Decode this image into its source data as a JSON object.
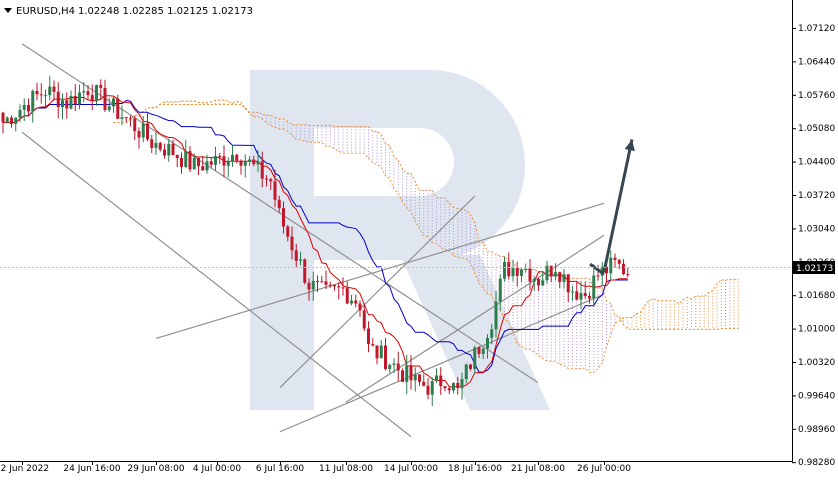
{
  "header": {
    "symbol_timeframe": "EURUSD,H4",
    "ohlc": "1.02248 1.02285 1.02125 1.02173"
  },
  "current_price_label": "1.02173",
  "colors": {
    "bull": "#2e7d4f",
    "bear": "#c0172a",
    "tenkan": "#e00000",
    "kijun": "#0000cc",
    "cloud": "#f0913a",
    "cloud_alt": "#b090d0",
    "trendline": "#909090",
    "arrow": "#37474f",
    "watermark": "#dfe6f0"
  },
  "chart_data": {
    "type": "candlestick",
    "symbol": "EURUSD",
    "timeframe": "H4",
    "y_ticks": [
      "1.07120",
      "1.06440",
      "1.05760",
      "1.05080",
      "1.04400",
      "1.03720",
      "1.03040",
      "1.02360",
      "1.01680",
      "1.01000",
      "1.00320",
      "0.99640",
      "0.98960",
      "0.98280"
    ],
    "x_ticks": [
      "22 Jun 2022",
      "24 Jun 16:00",
      "29 Jun 08:00",
      "4 Jul 00:00",
      "6 Jul 16:00",
      "11 Jul 08:00",
      "14 Jul 00:00",
      "18 Jul 16:00",
      "21 Jul 08:00",
      "26 Jul 00:00"
    ],
    "ylim": [
      0.9828,
      1.076
    ],
    "current_price": 1.02173,
    "close_path": [
      [
        0,
        1.052
      ],
      [
        5,
        1.0555
      ],
      [
        10,
        1.0585
      ],
      [
        15,
        1.056
      ],
      [
        20,
        1.059
      ],
      [
        25,
        1.0555
      ],
      [
        30,
        1.052
      ],
      [
        35,
        1.048
      ],
      [
        40,
        1.046
      ],
      [
        45,
        1.043
      ],
      [
        50,
        1.044
      ],
      [
        55,
        1.046
      ],
      [
        60,
        1.042
      ],
      [
        63,
        1.04
      ],
      [
        65,
        1.033
      ],
      [
        68,
        1.027
      ],
      [
        72,
        1.019
      ],
      [
        76,
        1.017
      ],
      [
        80,
        1.018
      ],
      [
        84,
        1.015
      ],
      [
        86,
        1.006
      ],
      [
        90,
        1.004
      ],
      [
        94,
        1.001
      ],
      [
        97,
        0.999
      ],
      [
        101,
        0.998
      ],
      [
        104,
        1.0
      ],
      [
        107,
        0.997
      ],
      [
        110,
        1.003
      ],
      [
        113,
        1.008
      ],
      [
        115,
        1.012
      ],
      [
        118,
        1.022
      ],
      [
        122,
        1.023
      ],
      [
        126,
        1.02
      ],
      [
        130,
        1.023
      ],
      [
        134,
        1.018
      ],
      [
        137,
        1.017
      ],
      [
        140,
        1.021
      ],
      [
        144,
        1.023
      ],
      [
        147,
        1.0217
      ]
    ],
    "trendlines": [
      {
        "from": [
          "22 Jun 2022",
          1.05
        ],
        "to": [
          "14 Jul 00:00",
          0.988
        ]
      },
      {
        "from": [
          "22 Jun 2022",
          1.068
        ],
        "to": [
          "21 Jul 08:00",
          0.999
        ]
      },
      {
        "from": [
          "6 Jul 16:00",
          0.998
        ],
        "to": [
          "18 Jul 16:00",
          1.037
        ]
      },
      {
        "from": [
          "29 Jun 08:00",
          1.008
        ],
        "to": [
          "26 Jul 00:00",
          1.0355
        ]
      },
      {
        "from": [
          "11 Jul 08:00",
          0.995
        ],
        "to": [
          "26 Jul 00:00",
          1.029
        ]
      },
      {
        "from": [
          "6 Jul 16:00",
          0.989
        ],
        "to": [
          "26 Jul 00:00",
          1.017
        ]
      }
    ],
    "forecast_arrow": {
      "from": [
        "26 Jul 00:00",
        1.0215
      ],
      "to": [
        "26 Jul 00:00",
        1.0485
      ]
    }
  }
}
